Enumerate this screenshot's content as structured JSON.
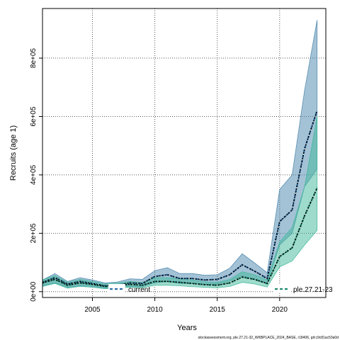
{
  "chart_data": {
    "type": "area",
    "xlabel": "Years",
    "ylabel": "Recruits (age 1)",
    "xlim": [
      2001,
      2023.7
    ],
    "ylim": [
      -20000,
      970000
    ],
    "x_ticks": [
      2005,
      2010,
      2015,
      2020
    ],
    "x_tick_labels": [
      "2005",
      "2010",
      "2015",
      "2020"
    ],
    "y_ticks": [
      0,
      200000,
      400000,
      600000,
      800000
    ],
    "y_tick_labels": [
      "0e+00",
      "2e+05",
      "4e+05",
      "6e+05",
      "8e+05"
    ],
    "grid": true,
    "legend_position": "bottom",
    "x": [
      2001,
      2002,
      2003,
      2004,
      2005,
      2006,
      2007,
      2008,
      2009,
      2010,
      2011,
      2012,
      2013,
      2014,
      2015,
      2016,
      2017,
      2018,
      2019,
      2020,
      2021,
      2022,
      2023
    ],
    "series": [
      {
        "name": "current",
        "color": "#2b6ca3",
        "band_color": "#4a86ad",
        "values": [
          32000,
          48000,
          26000,
          35000,
          28000,
          20000,
          22000,
          30000,
          28000,
          52000,
          58000,
          45000,
          45000,
          40000,
          42000,
          58000,
          92000,
          70000,
          45000,
          240000,
          280000,
          490000,
          620000
        ],
        "lower": [
          20000,
          30000,
          15000,
          20000,
          18000,
          12000,
          14000,
          18000,
          17000,
          30000,
          35000,
          28000,
          28000,
          25000,
          26000,
          36000,
          55000,
          42000,
          28000,
          160000,
          200000,
          360000,
          420000
        ],
        "upper": [
          40000,
          62000,
          35000,
          48000,
          40000,
          30000,
          33000,
          44000,
          42000,
          72000,
          82000,
          62000,
          62000,
          56000,
          58000,
          80000,
          130000,
          98000,
          65000,
          350000,
          400000,
          690000,
          930000
        ]
      },
      {
        "name": "ple.27.21-23",
        "color": "#1f8a6e",
        "band_color": "#3fb89a",
        "values": [
          30000,
          42000,
          22000,
          30000,
          25000,
          18000,
          20000,
          25000,
          22000,
          35000,
          35000,
          32000,
          28000,
          24000,
          22000,
          30000,
          50000,
          42000,
          28000,
          120000,
          150000,
          260000,
          355000
        ],
        "lower": [
          18000,
          28000,
          12000,
          18000,
          15000,
          10000,
          12000,
          15000,
          13000,
          22000,
          22000,
          20000,
          17000,
          15000,
          13000,
          18000,
          32000,
          26000,
          16000,
          85000,
          105000,
          160000,
          210000
        ],
        "upper": [
          40000,
          55000,
          32000,
          42000,
          35000,
          27000,
          29000,
          35000,
          31000,
          48000,
          48000,
          45000,
          40000,
          34000,
          32000,
          42000,
          68000,
          58000,
          40000,
          170000,
          220000,
          360000,
          600000
        ]
      }
    ]
  },
  "footer": "stockassessment.org, ple.27.21-32_WKBPLACE_2024_BASE, r18406, git:c9c81ac53a0d"
}
